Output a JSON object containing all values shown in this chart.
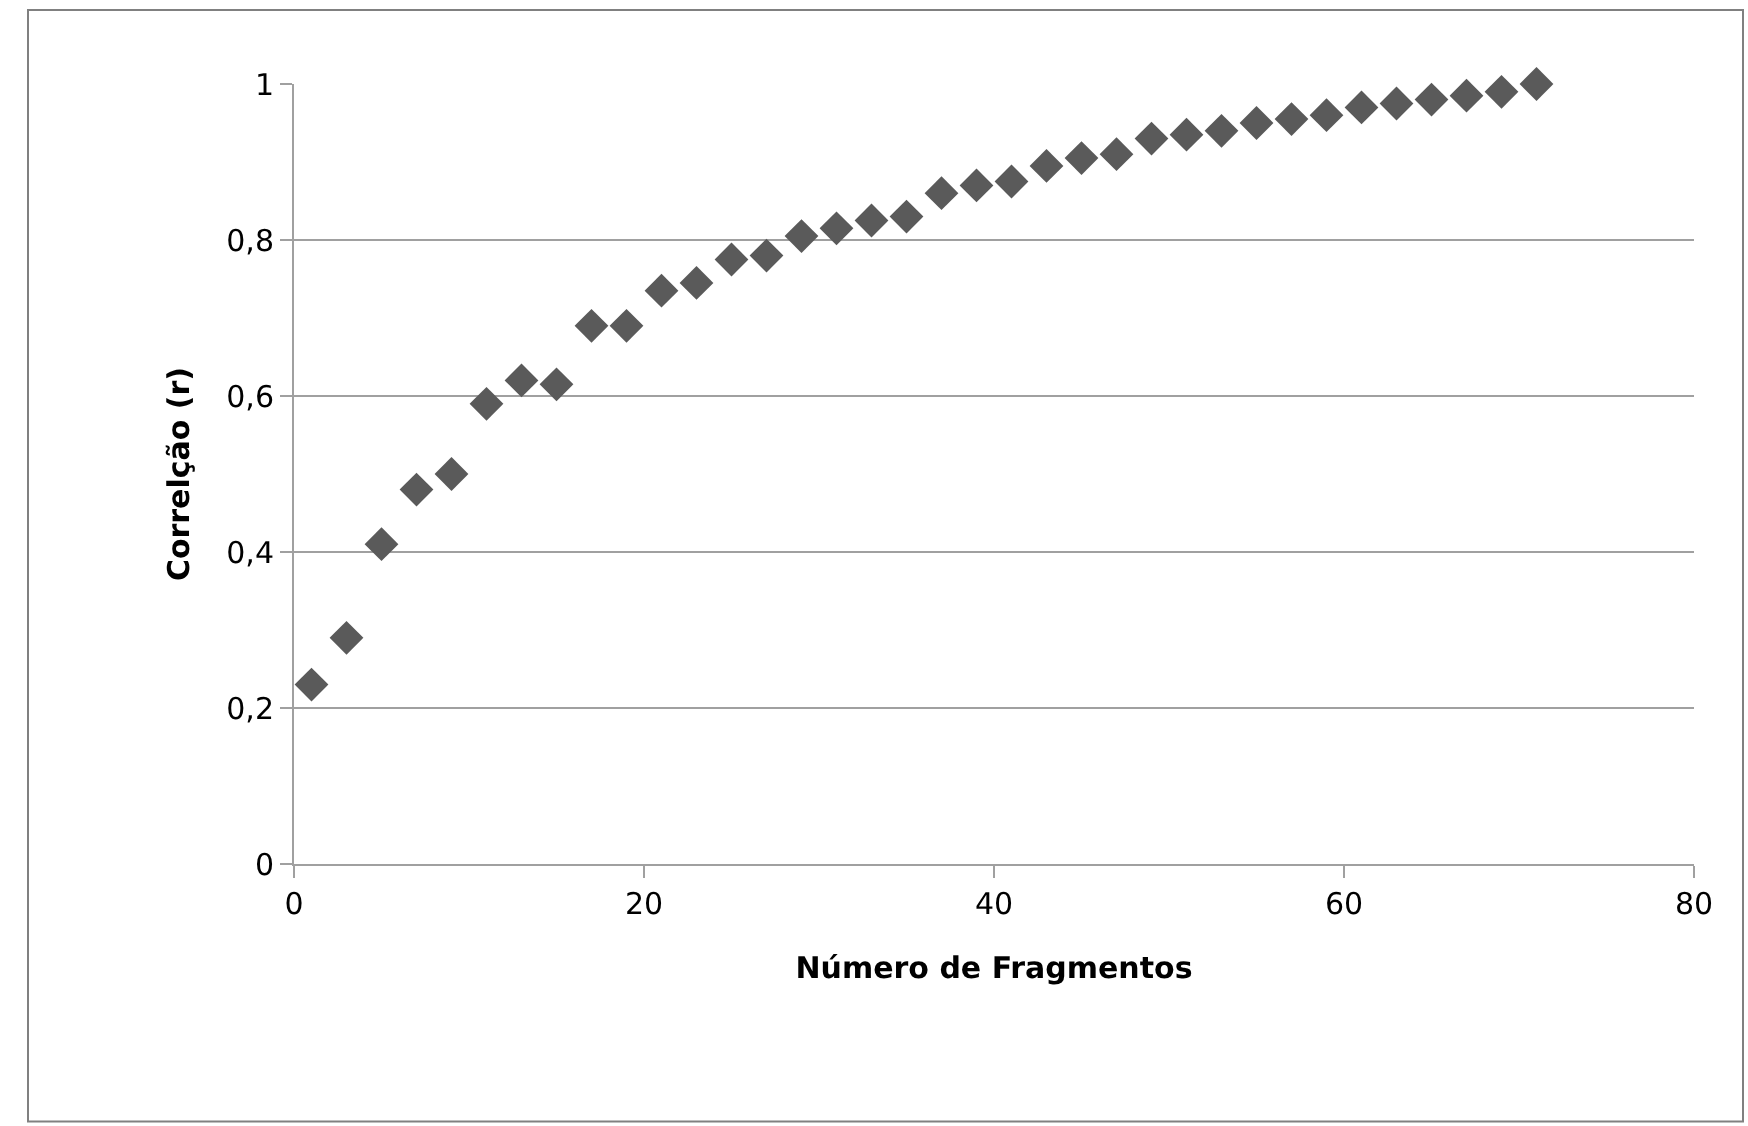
{
  "chart_data": {
    "type": "scatter",
    "xlabel": "Número de Fragmentos",
    "ylabel": "Correlção (r)",
    "x": [
      1,
      3,
      5,
      7,
      9,
      11,
      13,
      15,
      17,
      19,
      21,
      23,
      25,
      27,
      29,
      31,
      33,
      35,
      37,
      39,
      41,
      43,
      45,
      47,
      49,
      51,
      53,
      55,
      57,
      59,
      61,
      63,
      65,
      67,
      69,
      71
    ],
    "series": [
      {
        "color": "#5a5a5a",
        "values": [
          0.23,
          0.29,
          0.41,
          0.48,
          0.5,
          0.59,
          0.62,
          0.615,
          0.69,
          0.69,
          0.735,
          0.745,
          0.775,
          0.78,
          0.805,
          0.815,
          0.825,
          0.83,
          0.86,
          0.87,
          0.875,
          0.895,
          0.905,
          0.91,
          0.93,
          0.935,
          0.94,
          0.95,
          0.955,
          0.96,
          0.97,
          0.975,
          0.98,
          0.985,
          0.99,
          1.0
        ]
      }
    ],
    "xlim": [
      0,
      80
    ],
    "xticks": [
      0,
      20,
      40,
      60,
      80
    ],
    "ylim": [
      0,
      1
    ],
    "yticks": [
      0,
      {
        "value": 0.2,
        "label": "0,2"
      },
      {
        "value": 0.4,
        "label": "0,4"
      },
      {
        "value": 0.6,
        "label": "0,6"
      },
      {
        "value": 0.8,
        "label": "0,8"
      },
      1
    ],
    "grid": "y",
    "marker": "diamond"
  }
}
